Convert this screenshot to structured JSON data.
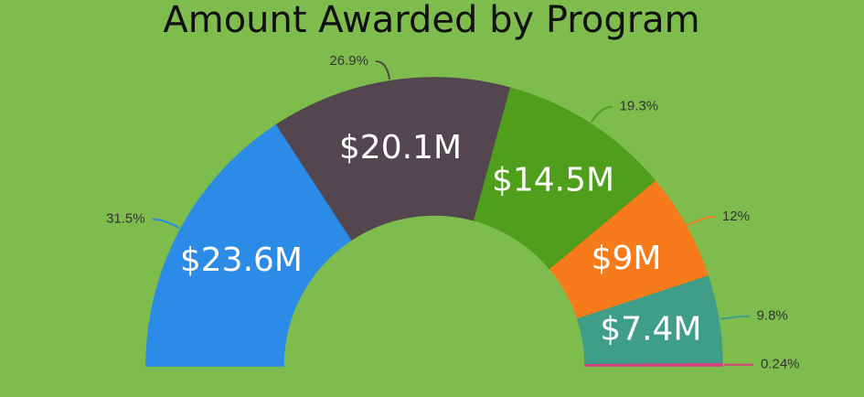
{
  "chart_data": {
    "type": "semi-donut",
    "title": "Amount Awarded by Program",
    "values": [
      31.5,
      26.9,
      19.3,
      12,
      9.8,
      0.24
    ],
    "value_labels": [
      "31.5%",
      "26.9%",
      "19.3%",
      "12%",
      "9.8%",
      "0.24%"
    ],
    "amounts": [
      23600000,
      20100000,
      14500000,
      9000000,
      7400000,
      null
    ],
    "amount_labels": [
      "$23.6M",
      "$20.1M",
      "$14.5M",
      "$9M",
      "$7.4M",
      null
    ],
    "colors": [
      "#2b8be6",
      "#54464f",
      "#4f9e1c",
      "#f87b1b",
      "#3f9e87",
      "#d9407a"
    ]
  }
}
